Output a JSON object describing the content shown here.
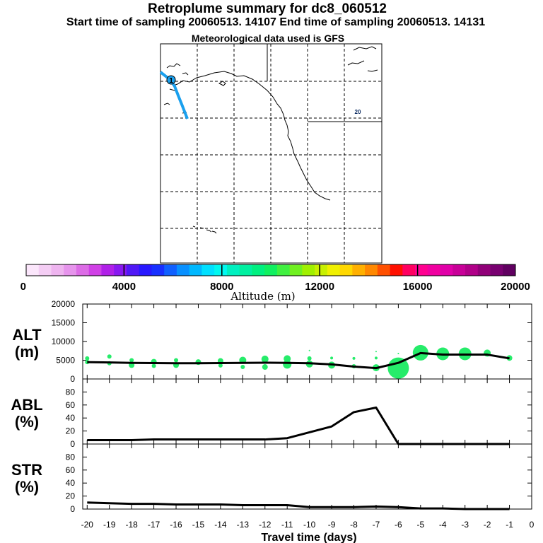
{
  "header": {
    "title": "Retroplume summary for dc8_060512",
    "subtitle": "Start time of sampling 20060513. 14107     End time of sampling 20060513. 14131",
    "met": "Meteorological data used is GFS"
  },
  "map": {
    "plume_label": "20",
    "source_marker": "1"
  },
  "colorbar": {
    "xlabel": "Altitude (m)",
    "ticks": [
      "0",
      "4000",
      "8000",
      "12000",
      "16000",
      "20000"
    ],
    "colors": [
      "#fbe6fb",
      "#f4cdf4",
      "#eeb4ef",
      "#e694ec",
      "#dc6ce6",
      "#d040e6",
      "#b020e8",
      "#8818f0",
      "#5018f6",
      "#2818ff",
      "#1830ff",
      "#1060ff",
      "#0890ff",
      "#00b8ff",
      "#00e0ff",
      "#00f8f0",
      "#00f0c0",
      "#00f0a0",
      "#00f080",
      "#10f060",
      "#40f040",
      "#70f020",
      "#a0f000",
      "#c8f000",
      "#f0f000",
      "#ffd800",
      "#ffb000",
      "#ff8800",
      "#ff5000",
      "#ff1000",
      "#ff0060",
      "#ff0090",
      "#f000a0",
      "#e000a8",
      "#c80098",
      "#b00088",
      "#900078",
      "#780070",
      "#600060"
    ]
  },
  "chart_data": [
    {
      "type": "line",
      "name": "ALT",
      "ylabel": "ALT (m)",
      "ylabel_line1": "ALT",
      "ylabel_line2": "(m)",
      "ylim": [
        0,
        20000
      ],
      "yticks": [
        "0",
        "5000",
        "10000",
        "15000",
        "20000"
      ],
      "x": [
        -20,
        -19,
        -18,
        -17,
        -16,
        -15,
        -14,
        -13,
        -12,
        -11,
        -10,
        -9,
        -8,
        -7,
        -6,
        -5,
        -4,
        -3,
        -2,
        -1
      ],
      "values": [
        4500,
        4400,
        4300,
        4250,
        4200,
        4200,
        4250,
        4300,
        4350,
        4300,
        4200,
        3900,
        3300,
        2900,
        4300,
        6900,
        6500,
        6500,
        6500,
        5500
      ],
      "bubbles": [
        {
          "x": -20,
          "y": 5500,
          "r": 3
        },
        {
          "x": -20,
          "y": 4500,
          "r": 3
        },
        {
          "x": -19,
          "y": 6000,
          "r": 3
        },
        {
          "x": -19,
          "y": 4200,
          "r": 3
        },
        {
          "x": -18,
          "y": 5000,
          "r": 3
        },
        {
          "x": -18,
          "y": 3700,
          "r": 4
        },
        {
          "x": -17,
          "y": 4600,
          "r": 4
        },
        {
          "x": -17,
          "y": 3500,
          "r": 3
        },
        {
          "x": -16,
          "y": 5000,
          "r": 3
        },
        {
          "x": -16,
          "y": 3700,
          "r": 4
        },
        {
          "x": -15,
          "y": 4500,
          "r": 4
        },
        {
          "x": -14,
          "y": 4800,
          "r": 4
        },
        {
          "x": -14,
          "y": 3600,
          "r": 3
        },
        {
          "x": -13,
          "y": 5000,
          "r": 5
        },
        {
          "x": -13,
          "y": 3200,
          "r": 3
        },
        {
          "x": -12,
          "y": 5300,
          "r": 5
        },
        {
          "x": -12,
          "y": 3200,
          "r": 4
        },
        {
          "x": -11,
          "y": 5400,
          "r": 5
        },
        {
          "x": -11,
          "y": 3900,
          "r": 6
        },
        {
          "x": -10,
          "y": 7600,
          "r": 1
        },
        {
          "x": -10,
          "y": 5500,
          "r": 3
        },
        {
          "x": -10,
          "y": 4000,
          "r": 5
        },
        {
          "x": -9,
          "y": 5600,
          "r": 2
        },
        {
          "x": -9,
          "y": 3700,
          "r": 5
        },
        {
          "x": -8,
          "y": 5500,
          "r": 2
        },
        {
          "x": -8,
          "y": 3400,
          "r": 3
        },
        {
          "x": -7,
          "y": 7300,
          "r": 1
        },
        {
          "x": -7,
          "y": 5600,
          "r": 2
        },
        {
          "x": -7,
          "y": 3000,
          "r": 5
        },
        {
          "x": -6,
          "y": 2900,
          "r": 15
        },
        {
          "x": -6,
          "y": 6800,
          "r": 1
        },
        {
          "x": -5,
          "y": 7000,
          "r": 11
        },
        {
          "x": -4,
          "y": 6700,
          "r": 9
        },
        {
          "x": -3,
          "y": 6700,
          "r": 9
        },
        {
          "x": -2,
          "y": 6900,
          "r": 5
        },
        {
          "x": -1,
          "y": 5600,
          "r": 4
        }
      ]
    },
    {
      "type": "line",
      "name": "ABL",
      "ylabel": "ABL (%)",
      "ylabel_line1": "ABL",
      "ylabel_line2": "(%)",
      "ylim": [
        0,
        100
      ],
      "yticks": [
        "0",
        "20",
        "40",
        "60",
        "80"
      ],
      "x": [
        -20,
        -19,
        -18,
        -17,
        -16,
        -15,
        -14,
        -13,
        -12,
        -11,
        -10,
        -9,
        -8,
        -7,
        -6,
        -5,
        -4,
        -3,
        -2,
        -1
      ],
      "values": [
        6,
        6,
        6,
        7,
        7,
        7,
        7,
        7,
        7,
        9,
        18,
        27,
        49,
        56,
        0,
        0,
        0,
        0,
        0,
        0
      ]
    },
    {
      "type": "line",
      "name": "STR",
      "ylabel": "STR (%)",
      "ylabel_line1": "STR",
      "ylabel_line2": "(%)",
      "ylim": [
        0,
        100
      ],
      "yticks": [
        "0",
        "20",
        "40",
        "60",
        "80"
      ],
      "xlabel": "Travel time (days)",
      "xticks": [
        "-20",
        "-19",
        "-18",
        "-17",
        "-16",
        "-15",
        "-14",
        "-13",
        "-12",
        "-11",
        "-10",
        "-9",
        "-8",
        "-7",
        "-6",
        "-5",
        "-4",
        "-3",
        "-2",
        "-1",
        "0"
      ],
      "x": [
        -20,
        -19,
        -18,
        -17,
        -16,
        -15,
        -14,
        -13,
        -12,
        -11,
        -10,
        -9,
        -8,
        -7,
        -6,
        -5,
        -4,
        -3,
        -2,
        -1
      ],
      "values": [
        10,
        9,
        8,
        8,
        7,
        7,
        7,
        6,
        6,
        6,
        3,
        3,
        3,
        4,
        3,
        1,
        1,
        0,
        0,
        0
      ]
    }
  ]
}
